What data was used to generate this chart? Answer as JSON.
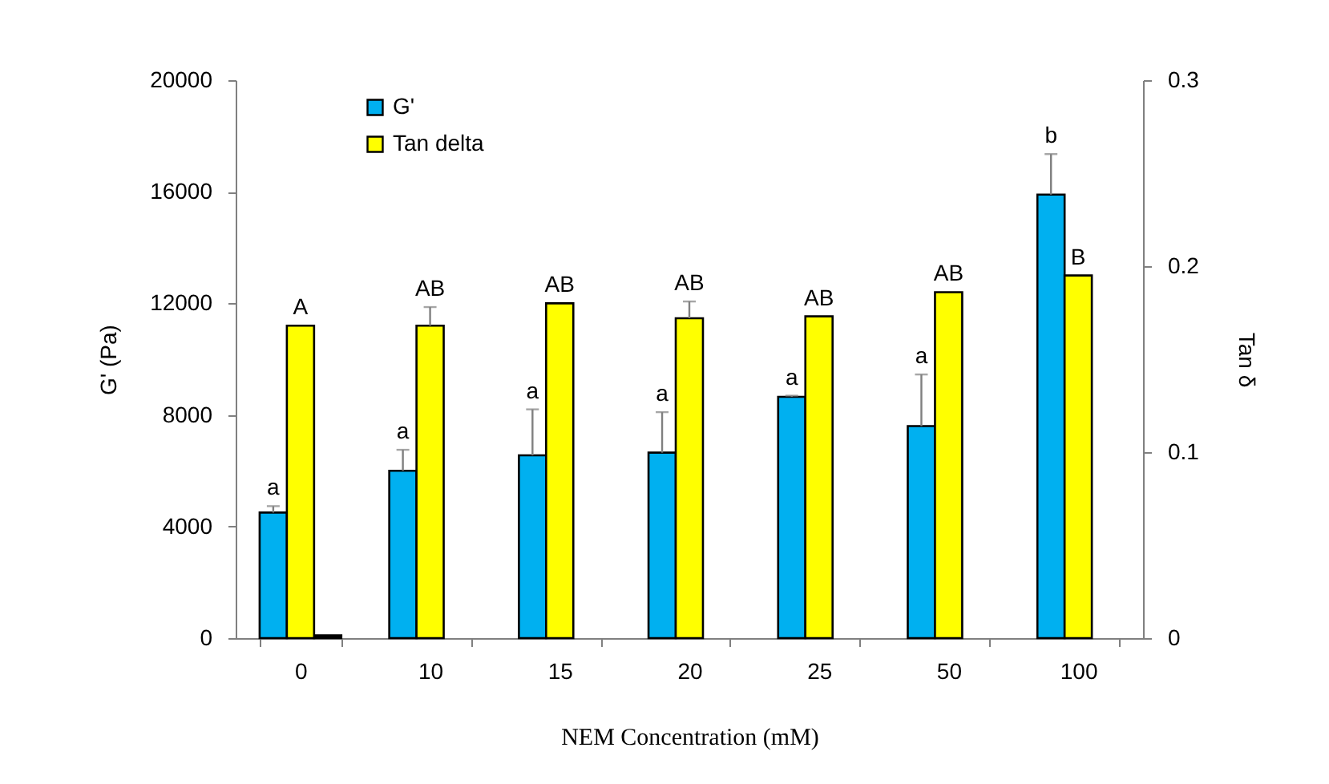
{
  "chart_data": {
    "type": "bar",
    "xlabel": "NEM Concentration (mM)",
    "ylabel": "G' (Pa)",
    "y2label": "Tan δ",
    "categories": [
      "0",
      "10",
      "15",
      "20",
      "25",
      "50",
      "100"
    ],
    "series": [
      {
        "name": "G'",
        "color": "#00b0f0",
        "values": [
          4500,
          6000,
          6550,
          6650,
          8650,
          7600,
          15900
        ],
        "errors": [
          [
            4500,
            4730
          ],
          [
            6000,
            6750
          ],
          [
            6550,
            8200
          ],
          [
            6650,
            8100
          ],
          [
            8650,
            8690
          ],
          [
            7600,
            9450
          ],
          [
            15900,
            17350
          ]
        ],
        "value_labels": [
          "a",
          "a",
          "a",
          "a",
          "a",
          "a",
          "b"
        ]
      },
      {
        "name": "Tan delta",
        "color": "#ffff00",
        "axis": "y2",
        "values": [
          0.168,
          0.168,
          0.18,
          0.172,
          0.173,
          0.186,
          0.195
        ],
        "errors": [
          null,
          [
            0.168,
            0.178
          ],
          null,
          [
            0.172,
            0.181
          ],
          null,
          null,
          null
        ],
        "value_labels": [
          "A",
          "AB",
          "AB",
          "AB",
          "AB",
          "AB",
          "B"
        ]
      },
      {
        "color": "#000000",
        "values": [
          100,
          null,
          null,
          null,
          null,
          null,
          null
        ]
      }
    ],
    "ylim": [
      0,
      20000
    ],
    "yticks": [
      0,
      4000,
      8000,
      12000,
      16000,
      20000
    ],
    "y2lim": [
      0,
      0.3
    ],
    "y2ticks": [
      0,
      0.1,
      0.2,
      0.3
    ],
    "legend": "top left"
  }
}
